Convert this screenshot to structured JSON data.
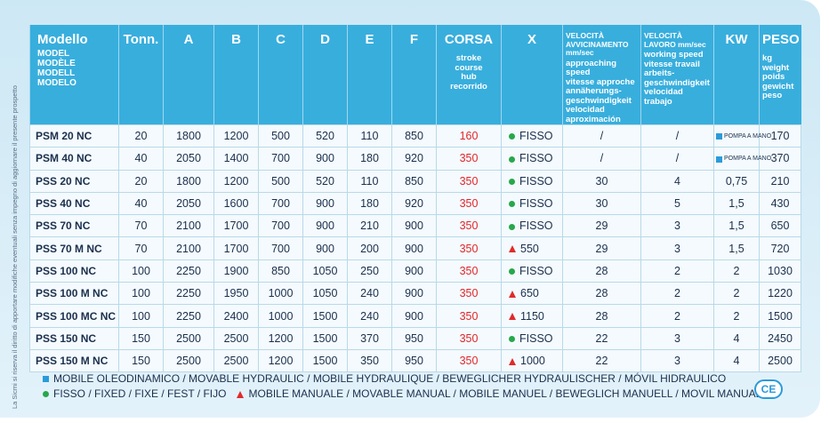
{
  "side_note": "La Sicmi si riserva il diritto di apportare modifiche eventuali senza impegno di aggiornare il presente prospetto",
  "table": {
    "columns": [
      {
        "title": "Modello",
        "sub": [
          "MODEL",
          "MODÈLE",
          "MODELL",
          "MODELO"
        ]
      },
      {
        "title": "Tonn.",
        "sub": []
      },
      {
        "title": "A",
        "sub": []
      },
      {
        "title": "B",
        "sub": []
      },
      {
        "title": "C",
        "sub": []
      },
      {
        "title": "D",
        "sub": []
      },
      {
        "title": "E",
        "sub": []
      },
      {
        "title": "F",
        "sub": []
      },
      {
        "title": "CORSA",
        "sub": [
          "stroke",
          "course",
          "hub",
          "recorrido"
        ]
      },
      {
        "title": "X",
        "sub": []
      },
      {
        "title": "VELOCITÀ AVVICINAMENTO mm/sec",
        "sub": [
          "approaching speed",
          "vitesse approche",
          "annäherungs-geschwindigkeit",
          "velocidad aproximación"
        ]
      },
      {
        "title": "VELOCITÀ LAVORO mm/sec",
        "sub": [
          "working speed",
          "vitesse travail",
          "arbeits-geschwindigkeit",
          "velocidad trabajo"
        ]
      },
      {
        "title": "KW",
        "sub": []
      },
      {
        "title": "PESO",
        "sub": [
          "kg",
          "weight",
          "poids",
          "gewicht",
          "peso"
        ]
      }
    ],
    "rows": [
      {
        "cells": [
          "PSM 20 NC",
          "20",
          "1800",
          "1200",
          "500",
          "520",
          "110",
          "850",
          "160",
          "FISSO",
          "/",
          "/",
          "POMPA A MANO",
          "170"
        ],
        "x_marker": "fixed",
        "kw_marker": "mobile"
      },
      {
        "cells": [
          "PSM 40 NC",
          "40",
          "2050",
          "1400",
          "700",
          "900",
          "180",
          "920",
          "350",
          "FISSO",
          "/",
          "/",
          "POMPA A MANO",
          "370"
        ],
        "x_marker": "fixed",
        "kw_marker": "mobile"
      },
      {
        "cells": [
          "PSS 20 NC",
          "20",
          "1800",
          "1200",
          "500",
          "520",
          "110",
          "850",
          "350",
          "FISSO",
          "30",
          "4",
          "0,75",
          "210"
        ],
        "x_marker": "fixed"
      },
      {
        "cells": [
          "PSS 40 NC",
          "40",
          "2050",
          "1600",
          "700",
          "900",
          "180",
          "920",
          "350",
          "FISSO",
          "30",
          "5",
          "1,5",
          "430"
        ],
        "x_marker": "fixed"
      },
      {
        "cells": [
          "PSS 70 NC",
          "70",
          "2100",
          "1700",
          "700",
          "900",
          "210",
          "900",
          "350",
          "FISSO",
          "29",
          "3",
          "1,5",
          "650"
        ],
        "x_marker": "fixed"
      },
      {
        "cells": [
          "PSS 70 M NC",
          "70",
          "2100",
          "1700",
          "700",
          "900",
          "200",
          "900",
          "350",
          "550",
          "29",
          "3",
          "1,5",
          "720"
        ],
        "x_marker": "manual"
      },
      {
        "cells": [
          "PSS 100 NC",
          "100",
          "2250",
          "1900",
          "850",
          "1050",
          "250",
          "900",
          "350",
          "FISSO",
          "28",
          "2",
          "2",
          "1030"
        ],
        "x_marker": "fixed"
      },
      {
        "cells": [
          "PSS 100 M NC",
          "100",
          "2250",
          "1950",
          "1000",
          "1050",
          "240",
          "900",
          "350",
          "650",
          "28",
          "2",
          "2",
          "1220"
        ],
        "x_marker": "manual"
      },
      {
        "cells": [
          "PSS 100 MC NC",
          "100",
          "2250",
          "2400",
          "1000",
          "1500",
          "240",
          "900",
          "350",
          "1150",
          "28",
          "2",
          "2",
          "1500"
        ],
        "x_marker": "manual"
      },
      {
        "cells": [
          "PSS 150 NC",
          "150",
          "2500",
          "2500",
          "1200",
          "1500",
          "370",
          "950",
          "350",
          "FISSO",
          "22",
          "3",
          "4",
          "2450"
        ],
        "x_marker": "fixed"
      },
      {
        "cells": [
          "PSS 150 M NC",
          "150",
          "2500",
          "2500",
          "1200",
          "1500",
          "350",
          "950",
          "350",
          "1000",
          "22",
          "3",
          "4",
          "2500"
        ],
        "x_marker": "manual"
      }
    ]
  },
  "legend": [
    {
      "marker": "mobile",
      "text": "MOBILE OLEODINAMICO / MOVABLE HYDRAULIC / MOBILE HYDRAULIQUE / BEWEGLICHER HYDRAULISCHER / MÓVIL HIDRAULICO"
    },
    {
      "marker": "fixed",
      "text": "FISSO / FIXED / FIXE / FEST / FIJO"
    },
    {
      "marker": "manual",
      "text": "MOBILE MANUALE / MOVABLE MANUAL / MOBILE MANUEL / BEWEGLICH MANUELL / MOVIL MANUAL"
    }
  ],
  "badge": "CE"
}
